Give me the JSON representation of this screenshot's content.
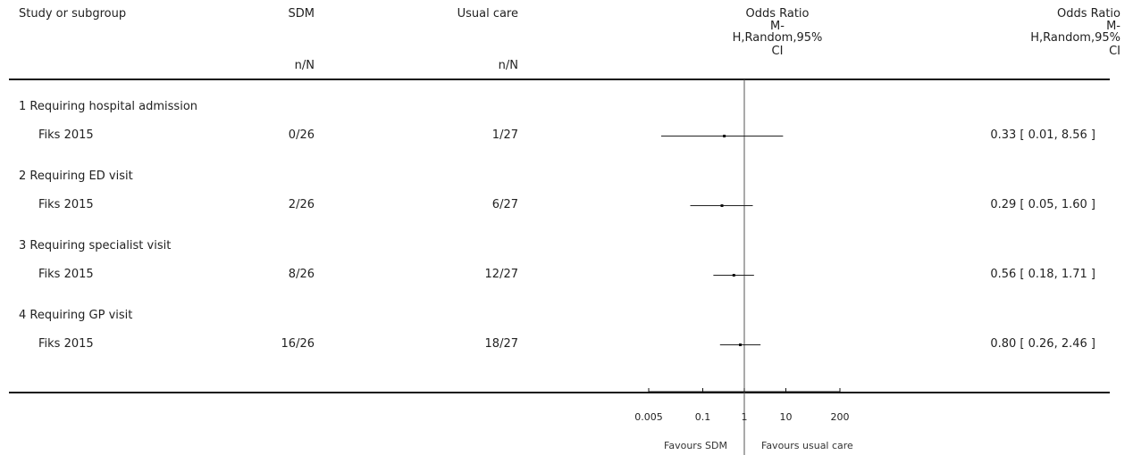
{
  "header": {
    "study_col": "Study or subgroup",
    "group1": "SDM",
    "group2": "Usual care",
    "nN": "n/N",
    "effect_title": "Odds Ratio",
    "effect_method_line1": "M-",
    "effect_method_line2": "H,Random,95%",
    "effect_method_line3": "CI"
  },
  "chart_data": {
    "type": "forest",
    "scale": "log",
    "effect_measure": "Odds Ratio",
    "method": "M-H,Random,95% CI",
    "x_ticks": [
      0.005,
      0.1,
      1,
      10,
      200
    ],
    "x_tick_labels": [
      "0.005",
      "0.1",
      "1",
      "10",
      "200"
    ],
    "null_value": 1,
    "favours_left": "Favours SDM",
    "favours_right": "Favours usual care",
    "subgroups": [
      {
        "label": "1 Requiring hospital admission",
        "studies": [
          {
            "name": "Fiks 2015",
            "sdm": "0/26",
            "usual": "1/27",
            "or": 0.33,
            "lo": 0.01,
            "hi": 8.56,
            "ci_text": "0.33 [ 0.01, 8.56 ]"
          }
        ]
      },
      {
        "label": "2 Requiring ED visit",
        "studies": [
          {
            "name": "Fiks 2015",
            "sdm": "2/26",
            "usual": "6/27",
            "or": 0.29,
            "lo": 0.05,
            "hi": 1.6,
            "ci_text": "0.29 [ 0.05, 1.60 ]"
          }
        ]
      },
      {
        "label": "3 Requiring specialist visit",
        "studies": [
          {
            "name": "Fiks 2015",
            "sdm": "8/26",
            "usual": "12/27",
            "or": 0.56,
            "lo": 0.18,
            "hi": 1.71,
            "ci_text": "0.56 [ 0.18, 1.71 ]"
          }
        ]
      },
      {
        "label": "4 Requiring GP visit",
        "studies": [
          {
            "name": "Fiks 2015",
            "sdm": "16/26",
            "usual": "18/27",
            "or": 0.8,
            "lo": 0.26,
            "hi": 2.46,
            "ci_text": "0.80 [ 0.26, 2.46 ]"
          }
        ]
      }
    ]
  }
}
